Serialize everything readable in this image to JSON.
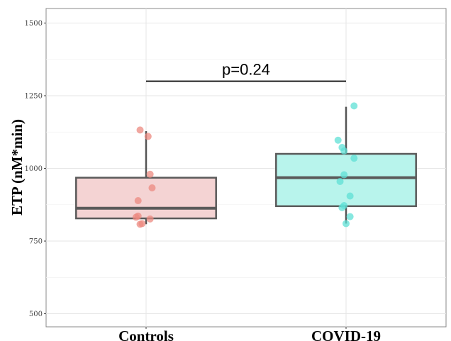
{
  "chart_data": {
    "type": "box",
    "ylabel": "ETP (nM*min)",
    "xlabel": "",
    "ylim": [
      455,
      1550
    ],
    "yticks": [
      500,
      750,
      1000,
      1250,
      1500
    ],
    "grid": true,
    "categories": [
      "Controls",
      "COVID-19"
    ],
    "boxes": [
      {
        "category": "Controls",
        "fill": "#f4d3d3",
        "point_color": "#ec8a80",
        "q1": 828,
        "median": 863,
        "q3": 968,
        "whisker_low": 808,
        "whisker_high": 1128,
        "points": [
          {
            "x": -0.03,
            "y": 1132
          },
          {
            "x": 0.01,
            "y": 1110
          },
          {
            "x": 0.02,
            "y": 980
          },
          {
            "x": 0.03,
            "y": 933
          },
          {
            "x": -0.04,
            "y": 889
          },
          {
            "x": -0.04,
            "y": 836
          },
          {
            "x": -0.05,
            "y": 832
          },
          {
            "x": 0.02,
            "y": 826
          },
          {
            "x": -0.02,
            "y": 810
          },
          {
            "x": -0.03,
            "y": 808
          }
        ]
      },
      {
        "category": "COVID-19",
        "fill": "#b8f4ec",
        "point_color": "#5fe0d6",
        "q1": 870,
        "median": 968,
        "q3": 1050,
        "whisker_low": 810,
        "whisker_high": 1212,
        "points": [
          {
            "x": 0.04,
            "y": 1215
          },
          {
            "x": -0.04,
            "y": 1097
          },
          {
            "x": -0.02,
            "y": 1072
          },
          {
            "x": 0.04,
            "y": 1035
          },
          {
            "x": -0.01,
            "y": 1060
          },
          {
            "x": -0.01,
            "y": 978
          },
          {
            "x": -0.03,
            "y": 955
          },
          {
            "x": 0.02,
            "y": 905
          },
          {
            "x": -0.01,
            "y": 872
          },
          {
            "x": -0.02,
            "y": 865
          },
          {
            "x": 0.02,
            "y": 834
          },
          {
            "x": 0.0,
            "y": 810
          }
        ]
      }
    ],
    "annotations": [
      {
        "text": "p=0.24",
        "y": 1300,
        "from": "Controls",
        "to": "COVID-19"
      }
    ]
  }
}
